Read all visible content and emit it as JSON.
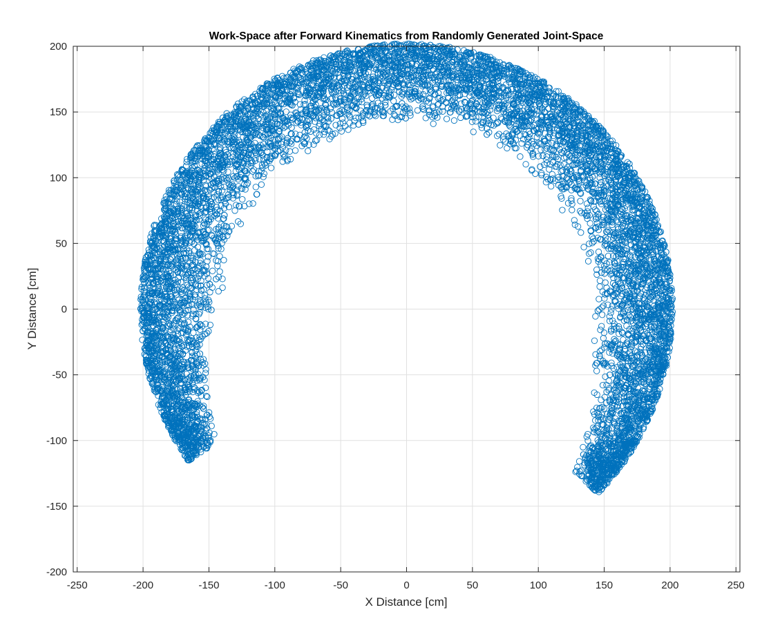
{
  "chart_data": {
    "type": "scatter",
    "title": "Work-Space after Forward Kinematics from Randomly Generated Joint-Space",
    "xlabel": "X Distance [cm]",
    "ylabel": "Y Distance [cm]",
    "xlim": [
      -253,
      253
    ],
    "ylim": [
      -200,
      200
    ],
    "xticks": [
      -250,
      -200,
      -150,
      -100,
      -50,
      0,
      50,
      100,
      150,
      200,
      250
    ],
    "yticks": [
      -200,
      -150,
      -100,
      -50,
      0,
      50,
      100,
      150,
      200
    ],
    "xtick_labels": [
      "-250",
      "-200",
      "-150",
      "-100",
      "-50",
      "0",
      "50",
      "100",
      "150",
      "200",
      "250"
    ],
    "ytick_labels": [
      "-200",
      "-150",
      "-100",
      "-50",
      "0",
      "50",
      "100",
      "150",
      "200"
    ],
    "grid": true,
    "box": true,
    "marker": "open-circle",
    "marker_color": "#0072BD",
    "series": [
      {
        "region": "annular arc of forward-kinematics end-effector positions",
        "center": [
          0,
          0
        ],
        "radius_range": [
          140,
          202
        ],
        "angle_range_deg": [
          -44,
          215
        ],
        "approx_boundary_points": {
          "outer_left_end": [
            -200,
            5
          ],
          "inner_left_tip": [
            -117,
            -82
          ],
          "outer_top": [
            0,
            202
          ],
          "inner_top": [
            0,
            141
          ],
          "outer_right": [
            202,
            0
          ],
          "inner_right_tip": [
            103,
            -100
          ]
        }
      }
    ]
  }
}
